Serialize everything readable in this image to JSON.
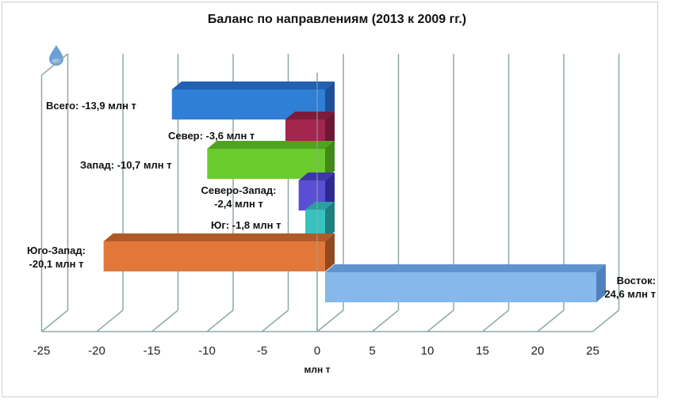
{
  "chart_data": {
    "type": "bar",
    "orientation": "horizontal",
    "style": "3d-clustered-bar",
    "title": "Баланс по направлениям (2013 к 2009 гг.)",
    "xlabel": "млн т",
    "ylabel": "",
    "xlim": [
      -25,
      25
    ],
    "x_ticks": [
      "-25",
      "-20",
      "-15",
      "-10",
      "-5",
      "0",
      "5",
      "10",
      "15",
      "20",
      "25"
    ],
    "grid": true,
    "legend": "none",
    "categories": [
      "Всего",
      "Север",
      "Запад",
      "Северо-Запад",
      "Юг",
      "Юго-Запад",
      "Восток"
    ],
    "values": [
      -13.9,
      -3.6,
      -10.7,
      -2.4,
      -1.8,
      -20.1,
      24.6
    ],
    "colors": [
      "#2f7fd6",
      "#a3264e",
      "#6ccb2c",
      "#5a4fd2",
      "#38c2bf",
      "#e2773a",
      "#86b8ec"
    ],
    "side_colors": [
      "#1d4f99",
      "#6b1835",
      "#3f8a18",
      "#2c2a92",
      "#1e7d7e",
      "#8f4a1e",
      "#4d82bf"
    ],
    "top_colors": [
      "#2160b3",
      "#7d1b3b",
      "#4fa322",
      "#3e37a8",
      "#2aa09d",
      "#b05a28",
      "#5f93cf"
    ],
    "data_labels": [
      [
        "Всего: -13,9 млн т"
      ],
      [
        "Север: -3,6 млн т"
      ],
      [
        "Запад: -10,7 млн т"
      ],
      [
        "Северо-Запад:",
        "-2,4 млн т"
      ],
      [
        "Юг: -1,8 млн т"
      ],
      [
        "Юго-Запад:",
        "-20,1 млн т"
      ],
      [
        "Восток:",
        "24,6 млн т"
      ]
    ]
  },
  "page": {
    "title": "Баланс по направлениям (2013 к 2009 гг.)",
    "xlabel": "млн т",
    "icon": "water-drop-icon"
  }
}
